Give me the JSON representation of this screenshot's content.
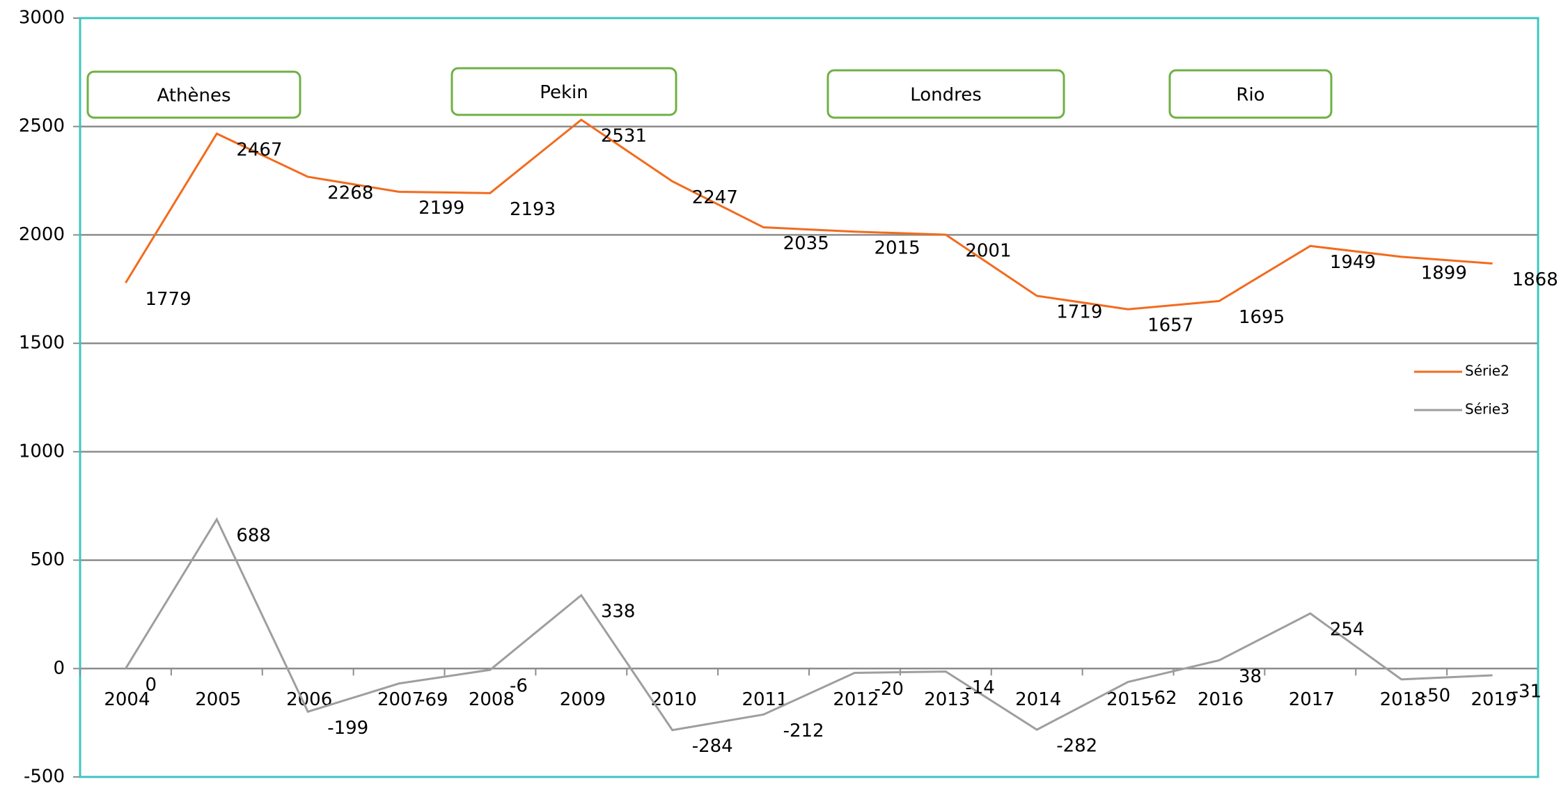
{
  "chart_data": {
    "type": "line",
    "categories": [
      "2004",
      "2005",
      "2006",
      "2007",
      "2008",
      "2009",
      "2010",
      "2011",
      "2012",
      "2013",
      "2014",
      "2015",
      "2016",
      "2017",
      "2018",
      "2019"
    ],
    "series": [
      {
        "name": "Série2",
        "color": "#f26b1d",
        "values": [
          1779,
          2467,
          2268,
          2199,
          2193,
          2531,
          2247,
          2035,
          2015,
          2001,
          1719,
          1657,
          1695,
          1949,
          1899,
          1868
        ]
      },
      {
        "name": "Série3",
        "color": "#9e9e9e",
        "values": [
          0,
          688,
          -199,
          -69,
          -6,
          338,
          -284,
          -212,
          -20,
          -14,
          -282,
          -62,
          38,
          254,
          -50,
          -31
        ]
      }
    ],
    "annotations": [
      "Athènes",
      "Pekin",
      "Londres",
      "Rio"
    ],
    "ylim": [
      -500,
      3000
    ],
    "yticks": [
      -500,
      0,
      500,
      1000,
      1500,
      2000,
      2500,
      3000
    ],
    "grid": true,
    "legend": "right"
  }
}
